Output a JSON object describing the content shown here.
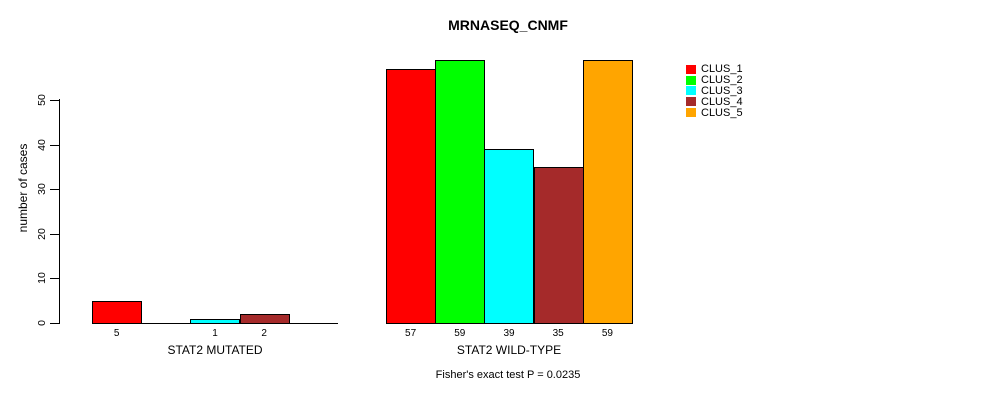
{
  "chart_data": {
    "type": "bar",
    "title": "MRNASEQ_CNMF",
    "ylabel": "number of cases",
    "xlabel": "",
    "ylim": [
      0,
      50
    ],
    "yticks": [
      0,
      10,
      20,
      30,
      40,
      50
    ],
    "grid": false,
    "legend_position": "right",
    "categories": [
      "STAT2 MUTATED",
      "STAT2 WILD-TYPE"
    ],
    "series": [
      {
        "name": "CLUS_1",
        "color": "#FF0000",
        "values": [
          5,
          57
        ]
      },
      {
        "name": "CLUS_2",
        "color": "#00FF00",
        "values": [
          0,
          59
        ]
      },
      {
        "name": "CLUS_3",
        "color": "#00FFFF",
        "values": [
          1,
          39
        ]
      },
      {
        "name": "CLUS_4",
        "color": "#A52A2A",
        "values": [
          2,
          35
        ]
      },
      {
        "name": "CLUS_5",
        "color": "#FFA500",
        "values": [
          0,
          59
        ]
      }
    ],
    "bar_value_labels": [
      [
        "5",
        null,
        "1",
        "2",
        null
      ],
      [
        "57",
        "59",
        "39",
        "35",
        "59"
      ]
    ],
    "footnote": "Fisher's exact test P = 0.0235",
    "axis_color": "#000000"
  }
}
